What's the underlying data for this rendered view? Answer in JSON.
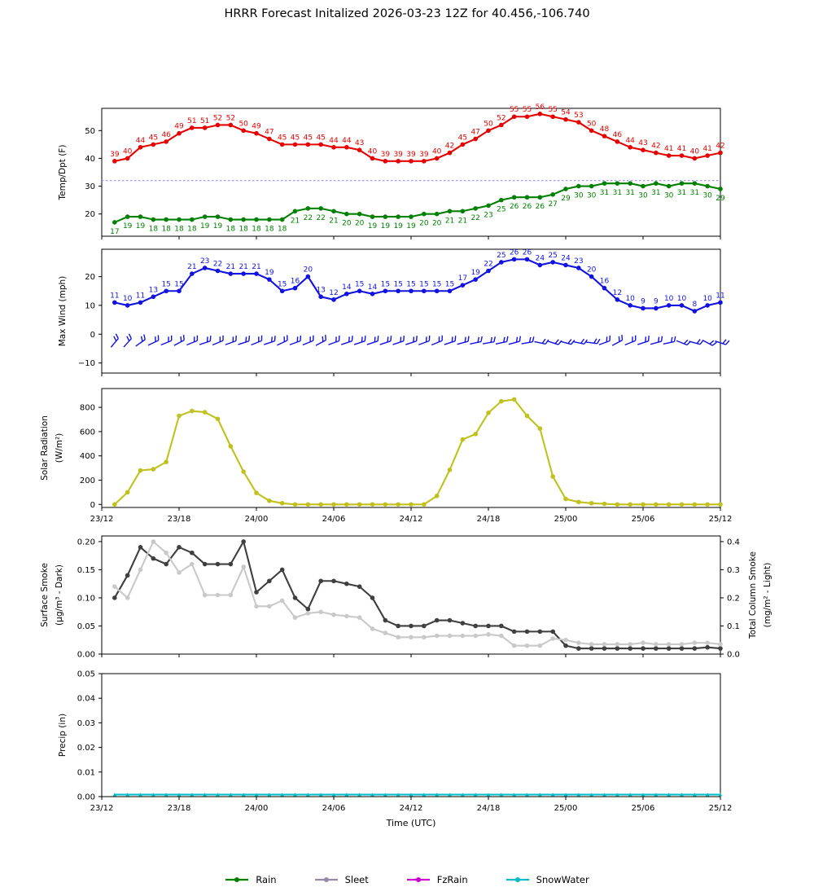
{
  "title": "HRRR Forecast Initalized 2026-03-23 12Z for 40.456,-106.740",
  "x_axis": {
    "xlabel": "Time (UTC)",
    "total_hours": 48,
    "tick_hours": [
      0,
      6,
      12,
      18,
      24,
      30,
      36,
      42,
      48
    ],
    "tick_labels": [
      "23/12",
      "23/18",
      "24/00",
      "24/06",
      "24/12",
      "24/18",
      "25/00",
      "25/06",
      "25/12"
    ]
  },
  "chart_data": [
    {
      "id": "temp_dpt",
      "type": "line",
      "ylabel_lines": [
        "Temp/Dpt (F)"
      ],
      "ylim": [
        12,
        58
      ],
      "ytick_values": [
        20,
        30,
        40,
        50
      ],
      "ytick_labels": [
        "20",
        "30",
        "40",
        "50"
      ],
      "reference_line": {
        "value": 32,
        "color": "#8080ff"
      },
      "series": [
        {
          "id": "temp",
          "name": "Temperature (F)",
          "color": "#e60000",
          "point_labels": true,
          "label_side": "above",
          "values": [
            39,
            40,
            44,
            45,
            46,
            49,
            51,
            51,
            52,
            52,
            50,
            49,
            47,
            45,
            45,
            45,
            45,
            44,
            44,
            43,
            40,
            39,
            39,
            39,
            39,
            40,
            42,
            45,
            47,
            50,
            52,
            55,
            55,
            56,
            55,
            54,
            53,
            50,
            48,
            46,
            44,
            43,
            42,
            41,
            41,
            40,
            41,
            42
          ]
        },
        {
          "id": "dpt",
          "name": "Dewpoint (F)",
          "color": "#008000",
          "point_labels": true,
          "label_side": "below",
          "values": [
            17,
            19,
            19,
            18,
            18,
            18,
            18,
            19,
            19,
            18,
            18,
            18,
            18,
            18,
            21,
            22,
            22,
            21,
            20,
            20,
            19,
            19,
            19,
            19,
            20,
            20,
            21,
            21,
            22,
            23,
            25,
            26,
            26,
            26,
            27,
            29,
            30,
            30,
            31,
            31,
            31,
            30,
            31,
            30,
            31,
            31,
            30,
            29
          ]
        }
      ]
    },
    {
      "id": "max_wind",
      "type": "line",
      "ylabel_lines": [
        "Max Wind (mph)"
      ],
      "ylim": [
        -13.5,
        29.5
      ],
      "ytick_values": [
        -10,
        0,
        10,
        20
      ],
      "ytick_labels": [
        "−10",
        "0",
        "10",
        "20"
      ],
      "series": [
        {
          "id": "wind",
          "name": "Max Wind (mph)",
          "color": "#1212e0",
          "point_labels": true,
          "label_side": "above",
          "values": [
            11,
            10,
            11,
            13,
            15,
            15,
            21,
            23,
            22,
            21,
            21,
            21,
            19,
            15,
            16,
            20,
            13,
            12,
            14,
            15,
            14,
            15,
            15,
            15,
            15,
            15,
            15,
            17,
            19,
            22,
            25,
            26,
            26,
            24,
            25,
            24,
            23,
            20,
            16,
            12,
            10,
            9,
            9,
            10,
            10,
            8,
            10,
            11
          ]
        }
      ],
      "wind_barbs": {
        "y_value": -3,
        "color": "#1212e0",
        "angles_deg": [
          50,
          48,
          35,
          25,
          22,
          28,
          22,
          18,
          22,
          20,
          18,
          22,
          18,
          25,
          20,
          22,
          28,
          20,
          18,
          18,
          18,
          18,
          18,
          18,
          20,
          22,
          18,
          15,
          12,
          10,
          12,
          15,
          10,
          -12,
          -18,
          -15,
          -12,
          -8,
          20,
          28,
          22,
          18,
          15,
          12,
          -22,
          -15,
          -28,
          -18
        ]
      }
    },
    {
      "id": "solar",
      "type": "line",
      "ylabel_lines": [
        "Solar Radiation",
        "(W/m²)"
      ],
      "ylim": [
        -25,
        955
      ],
      "ytick_values": [
        0,
        200,
        400,
        600,
        800
      ],
      "ytick_labels": [
        "0",
        "200",
        "400",
        "600",
        "800"
      ],
      "show_x_tick_labels": true,
      "series": [
        {
          "id": "solar",
          "name": "Solar Radiation (W/m²)",
          "color": "#c1c11e",
          "values": [
            0,
            100,
            280,
            290,
            350,
            730,
            770,
            760,
            705,
            480,
            270,
            95,
            30,
            10,
            0,
            0,
            0,
            0,
            0,
            0,
            0,
            0,
            0,
            0,
            0,
            70,
            285,
            535,
            580,
            755,
            850,
            865,
            730,
            625,
            230,
            45,
            20,
            10,
            5,
            0,
            0,
            0,
            0,
            0,
            0,
            0,
            0,
            0
          ]
        }
      ]
    },
    {
      "id": "smoke",
      "type": "line",
      "ylabel_lines": [
        "Surface Smoke",
        "(μg/m³ - Dark)"
      ],
      "ylim": [
        0,
        0.21
      ],
      "ytick_values": [
        0,
        0.05,
        0.1,
        0.15,
        0.2
      ],
      "ytick_labels": [
        "0.00",
        "0.05",
        "0.10",
        "0.15",
        "0.20"
      ],
      "right_axis": {
        "ylabel_lines": [
          "Total Column Smoke",
          "(mg/m² - Light)"
        ],
        "ylim": [
          0,
          0.42
        ],
        "ytick_values": [
          0,
          0.1,
          0.2,
          0.3,
          0.4
        ],
        "ytick_labels": [
          "0.0",
          "0.1",
          "0.2",
          "0.3",
          "0.4"
        ]
      },
      "series": [
        {
          "id": "smoke_dark",
          "name": "Surface Smoke",
          "color": "#3f3f3f",
          "axis": "left",
          "values": [
            0.1,
            0.14,
            0.19,
            0.17,
            0.16,
            0.19,
            0.18,
            0.16,
            0.16,
            0.16,
            0.2,
            0.11,
            0.13,
            0.15,
            0.1,
            0.08,
            0.13,
            0.13,
            0.125,
            0.12,
            0.1,
            0.06,
            0.05,
            0.05,
            0.05,
            0.06,
            0.06,
            0.055,
            0.05,
            0.05,
            0.05,
            0.04,
            0.04,
            0.04,
            0.04,
            0.015,
            0.01,
            0.01,
            0.01,
            0.01,
            0.01,
            0.01,
            0.01,
            0.01,
            0.01,
            0.01,
            0.012,
            0.01
          ]
        },
        {
          "id": "smoke_light",
          "name": "Total Column Smoke",
          "color": "#c9c9c9",
          "axis": "right",
          "values": [
            0.24,
            0.2,
            0.3,
            0.4,
            0.36,
            0.29,
            0.32,
            0.21,
            0.21,
            0.21,
            0.31,
            0.17,
            0.17,
            0.19,
            0.13,
            0.145,
            0.15,
            0.14,
            0.135,
            0.13,
            0.09,
            0.075,
            0.06,
            0.06,
            0.06,
            0.065,
            0.065,
            0.065,
            0.065,
            0.07,
            0.065,
            0.03,
            0.03,
            0.03,
            0.055,
            0.05,
            0.04,
            0.035,
            0.035,
            0.035,
            0.035,
            0.04,
            0.035,
            0.035,
            0.035,
            0.04,
            0.04,
            0.035
          ]
        }
      ]
    },
    {
      "id": "precip",
      "type": "line",
      "ylabel_lines": [
        "Precip (in)"
      ],
      "ylim": [
        0,
        0.05
      ],
      "ytick_values": [
        0,
        0.01,
        0.02,
        0.03,
        0.04,
        0.05
      ],
      "ytick_labels": [
        "0.00",
        "0.01",
        "0.02",
        "0.03",
        "0.04",
        "0.05"
      ],
      "show_x_tick_labels": true,
      "show_xlabel": true,
      "series": [
        {
          "id": "snowwater",
          "name": "SnowWater",
          "color": "#00bcc8",
          "marker": "triangle",
          "values": [
            0,
            0,
            0,
            0,
            0,
            0,
            0,
            0,
            0,
            0,
            0,
            0,
            0,
            0,
            0,
            0,
            0,
            0,
            0,
            0,
            0,
            0,
            0,
            0,
            0,
            0,
            0,
            0,
            0,
            0,
            0,
            0,
            0,
            0,
            0,
            0,
            0,
            0,
            0,
            0,
            0,
            0,
            0,
            0,
            0,
            0,
            0,
            0
          ]
        }
      ]
    }
  ],
  "legend": {
    "items": [
      {
        "label": "Rain",
        "color": "#008000"
      },
      {
        "label": "Sleet",
        "color": "#968ba3"
      },
      {
        "label": "FzRain",
        "color": "#cc00cc"
      },
      {
        "label": "SnowWater",
        "color": "#00bcc8"
      }
    ]
  }
}
